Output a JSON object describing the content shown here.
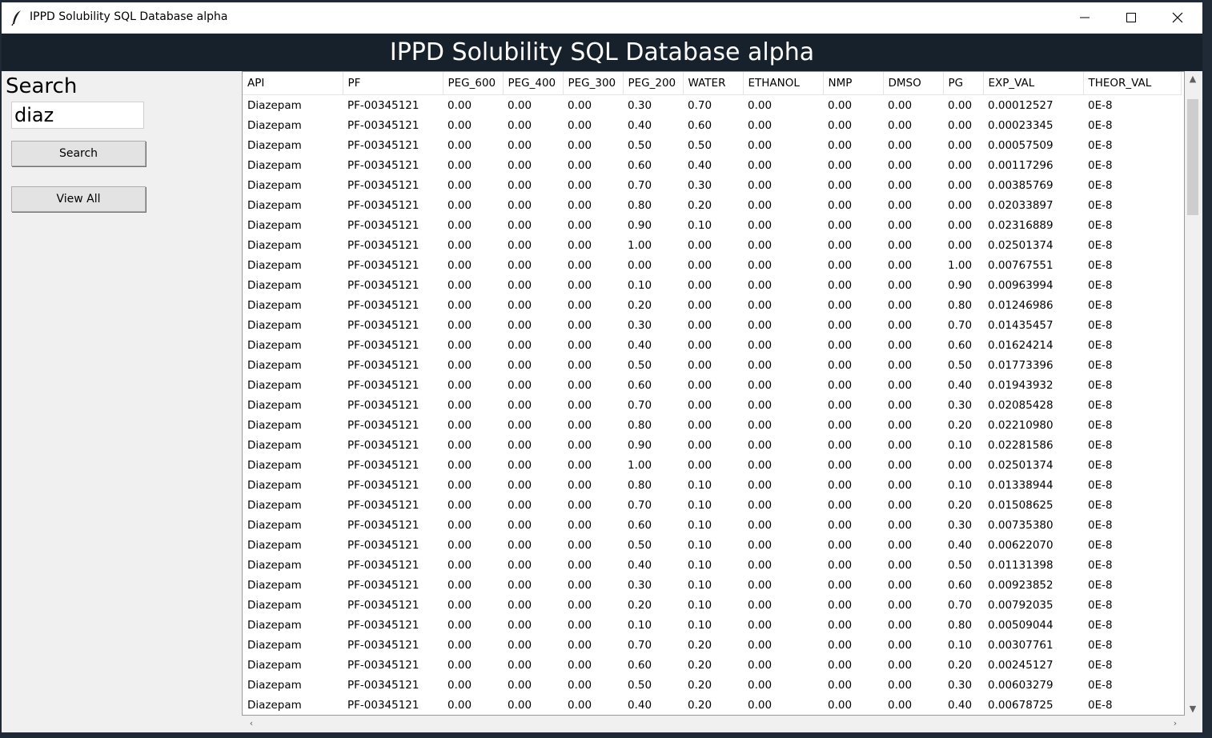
{
  "window": {
    "title": "IPPD Solubility SQL Database alpha"
  },
  "header": {
    "title": "IPPD Solubility SQL Database alpha"
  },
  "sidebar": {
    "search_label": "Search",
    "search_value": "diaz",
    "search_button": "Search",
    "view_all_button": "View All"
  },
  "icons": {
    "app": "feather-icon",
    "minimize": "minimize-icon",
    "maximize": "maximize-icon",
    "close": "close-icon"
  },
  "table": {
    "columns": [
      "API",
      "PF",
      "PEG_600",
      "PEG_400",
      "PEG_300",
      "PEG_200",
      "WATER",
      "ETHANOL",
      "NMP",
      "DMSO",
      "PG",
      "EXP_VAL",
      "THEOR_VAL"
    ],
    "rows": [
      [
        "Diazepam",
        "PF-00345121",
        "0.00",
        "0.00",
        "0.00",
        "0.30",
        "0.70",
        "0.00",
        "0.00",
        "0.00",
        "0.00",
        "0.00012527",
        "0E-8"
      ],
      [
        "Diazepam",
        "PF-00345121",
        "0.00",
        "0.00",
        "0.00",
        "0.40",
        "0.60",
        "0.00",
        "0.00",
        "0.00",
        "0.00",
        "0.00023345",
        "0E-8"
      ],
      [
        "Diazepam",
        "PF-00345121",
        "0.00",
        "0.00",
        "0.00",
        "0.50",
        "0.50",
        "0.00",
        "0.00",
        "0.00",
        "0.00",
        "0.00057509",
        "0E-8"
      ],
      [
        "Diazepam",
        "PF-00345121",
        "0.00",
        "0.00",
        "0.00",
        "0.60",
        "0.40",
        "0.00",
        "0.00",
        "0.00",
        "0.00",
        "0.00117296",
        "0E-8"
      ],
      [
        "Diazepam",
        "PF-00345121",
        "0.00",
        "0.00",
        "0.00",
        "0.70",
        "0.30",
        "0.00",
        "0.00",
        "0.00",
        "0.00",
        "0.00385769",
        "0E-8"
      ],
      [
        "Diazepam",
        "PF-00345121",
        "0.00",
        "0.00",
        "0.00",
        "0.80",
        "0.20",
        "0.00",
        "0.00",
        "0.00",
        "0.00",
        "0.02033897",
        "0E-8"
      ],
      [
        "Diazepam",
        "PF-00345121",
        "0.00",
        "0.00",
        "0.00",
        "0.90",
        "0.10",
        "0.00",
        "0.00",
        "0.00",
        "0.00",
        "0.02316889",
        "0E-8"
      ],
      [
        "Diazepam",
        "PF-00345121",
        "0.00",
        "0.00",
        "0.00",
        "1.00",
        "0.00",
        "0.00",
        "0.00",
        "0.00",
        "0.00",
        "0.02501374",
        "0E-8"
      ],
      [
        "Diazepam",
        "PF-00345121",
        "0.00",
        "0.00",
        "0.00",
        "0.00",
        "0.00",
        "0.00",
        "0.00",
        "0.00",
        "1.00",
        "0.00767551",
        "0E-8"
      ],
      [
        "Diazepam",
        "PF-00345121",
        "0.00",
        "0.00",
        "0.00",
        "0.10",
        "0.00",
        "0.00",
        "0.00",
        "0.00",
        "0.90",
        "0.00963994",
        "0E-8"
      ],
      [
        "Diazepam",
        "PF-00345121",
        "0.00",
        "0.00",
        "0.00",
        "0.20",
        "0.00",
        "0.00",
        "0.00",
        "0.00",
        "0.80",
        "0.01246986",
        "0E-8"
      ],
      [
        "Diazepam",
        "PF-00345121",
        "0.00",
        "0.00",
        "0.00",
        "0.30",
        "0.00",
        "0.00",
        "0.00",
        "0.00",
        "0.70",
        "0.01435457",
        "0E-8"
      ],
      [
        "Diazepam",
        "PF-00345121",
        "0.00",
        "0.00",
        "0.00",
        "0.40",
        "0.00",
        "0.00",
        "0.00",
        "0.00",
        "0.60",
        "0.01624214",
        "0E-8"
      ],
      [
        "Diazepam",
        "PF-00345121",
        "0.00",
        "0.00",
        "0.00",
        "0.50",
        "0.00",
        "0.00",
        "0.00",
        "0.00",
        "0.50",
        "0.01773396",
        "0E-8"
      ],
      [
        "Diazepam",
        "PF-00345121",
        "0.00",
        "0.00",
        "0.00",
        "0.60",
        "0.00",
        "0.00",
        "0.00",
        "0.00",
        "0.40",
        "0.01943932",
        "0E-8"
      ],
      [
        "Diazepam",
        "PF-00345121",
        "0.00",
        "0.00",
        "0.00",
        "0.70",
        "0.00",
        "0.00",
        "0.00",
        "0.00",
        "0.30",
        "0.02085428",
        "0E-8"
      ],
      [
        "Diazepam",
        "PF-00345121",
        "0.00",
        "0.00",
        "0.00",
        "0.80",
        "0.00",
        "0.00",
        "0.00",
        "0.00",
        "0.20",
        "0.02210980",
        "0E-8"
      ],
      [
        "Diazepam",
        "PF-00345121",
        "0.00",
        "0.00",
        "0.00",
        "0.90",
        "0.00",
        "0.00",
        "0.00",
        "0.00",
        "0.10",
        "0.02281586",
        "0E-8"
      ],
      [
        "Diazepam",
        "PF-00345121",
        "0.00",
        "0.00",
        "0.00",
        "1.00",
        "0.00",
        "0.00",
        "0.00",
        "0.00",
        "0.00",
        "0.02501374",
        "0E-8"
      ],
      [
        "Diazepam",
        "PF-00345121",
        "0.00",
        "0.00",
        "0.00",
        "0.80",
        "0.10",
        "0.00",
        "0.00",
        "0.00",
        "0.10",
        "0.01338944",
        "0E-8"
      ],
      [
        "Diazepam",
        "PF-00345121",
        "0.00",
        "0.00",
        "0.00",
        "0.70",
        "0.10",
        "0.00",
        "0.00",
        "0.00",
        "0.20",
        "0.01508625",
        "0E-8"
      ],
      [
        "Diazepam",
        "PF-00345121",
        "0.00",
        "0.00",
        "0.00",
        "0.60",
        "0.10",
        "0.00",
        "0.00",
        "0.00",
        "0.30",
        "0.00735380",
        "0E-8"
      ],
      [
        "Diazepam",
        "PF-00345121",
        "0.00",
        "0.00",
        "0.00",
        "0.50",
        "0.10",
        "0.00",
        "0.00",
        "0.00",
        "0.40",
        "0.00622070",
        "0E-8"
      ],
      [
        "Diazepam",
        "PF-00345121",
        "0.00",
        "0.00",
        "0.00",
        "0.40",
        "0.10",
        "0.00",
        "0.00",
        "0.00",
        "0.50",
        "0.01131398",
        "0E-8"
      ],
      [
        "Diazepam",
        "PF-00345121",
        "0.00",
        "0.00",
        "0.00",
        "0.30",
        "0.10",
        "0.00",
        "0.00",
        "0.00",
        "0.60",
        "0.00923852",
        "0E-8"
      ],
      [
        "Diazepam",
        "PF-00345121",
        "0.00",
        "0.00",
        "0.00",
        "0.20",
        "0.10",
        "0.00",
        "0.00",
        "0.00",
        "0.70",
        "0.00792035",
        "0E-8"
      ],
      [
        "Diazepam",
        "PF-00345121",
        "0.00",
        "0.00",
        "0.00",
        "0.10",
        "0.10",
        "0.00",
        "0.00",
        "0.00",
        "0.80",
        "0.00509044",
        "0E-8"
      ],
      [
        "Diazepam",
        "PF-00345121",
        "0.00",
        "0.00",
        "0.00",
        "0.70",
        "0.20",
        "0.00",
        "0.00",
        "0.00",
        "0.10",
        "0.00307761",
        "0E-8"
      ],
      [
        "Diazepam",
        "PF-00345121",
        "0.00",
        "0.00",
        "0.00",
        "0.60",
        "0.20",
        "0.00",
        "0.00",
        "0.00",
        "0.20",
        "0.00245127",
        "0E-8"
      ],
      [
        "Diazepam",
        "PF-00345121",
        "0.00",
        "0.00",
        "0.00",
        "0.50",
        "0.20",
        "0.00",
        "0.00",
        "0.00",
        "0.30",
        "0.00603279",
        "0E-8"
      ],
      [
        "Diazepam",
        "PF-00345121",
        "0.00",
        "0.00",
        "0.00",
        "0.40",
        "0.20",
        "0.00",
        "0.00",
        "0.00",
        "0.40",
        "0.00678725",
        "0E-8"
      ]
    ]
  }
}
